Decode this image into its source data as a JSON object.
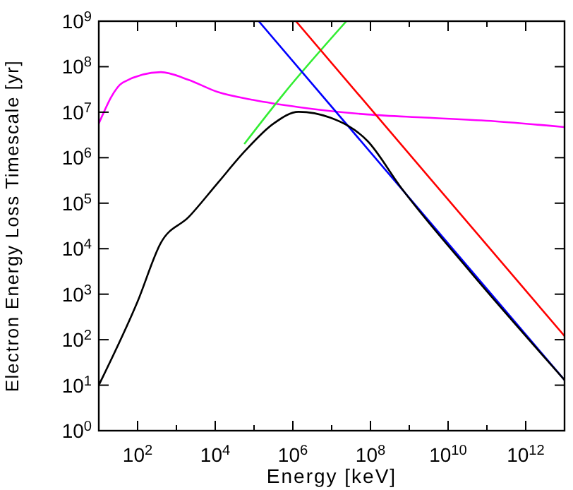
{
  "chart_data": {
    "type": "line",
    "xlabel": "Energy [keV]",
    "ylabel": "Electron Energy Loss Timescale [yr]",
    "log": "xy",
    "grid": false,
    "line_style": "solid",
    "marker": "none",
    "xlim": [
      10,
      10000000000000.0
    ],
    "xticks": [
      {
        "value": 10,
        "label": null
      },
      {
        "value": 100,
        "label": "10$^{2}$"
      },
      {
        "value": 1000,
        "label": null
      },
      {
        "value": 10000,
        "label": "10$^{4}$"
      },
      {
        "value": 100000,
        "label": null
      },
      {
        "value": 1000000,
        "label": "10$^{6}$"
      },
      {
        "value": 10000000,
        "label": null
      },
      {
        "value": 100000000,
        "label": "10$^{8}$"
      },
      {
        "value": 1000000000,
        "label": null
      },
      {
        "value": 10000000000,
        "label": "10$^{10}$"
      },
      {
        "value": 100000000000,
        "label": null
      },
      {
        "value": 1000000000000,
        "label": "10$^{12}$"
      }
    ],
    "ylim": [
      1,
      1000000000.0
    ],
    "yticks": [
      {
        "value": 1,
        "label": "10$^{0}$"
      },
      {
        "value": 10,
        "label": "10$^{1}$"
      },
      {
        "value": 100,
        "label": "10$^{2}$"
      },
      {
        "value": 1000,
        "label": "10$^{3}$"
      },
      {
        "value": 10000,
        "label": "10$^{4}$"
      },
      {
        "value": 100000,
        "label": "10$^{5}$"
      },
      {
        "value": 1000000,
        "label": "10$^{6}$"
      },
      {
        "value": 10000000,
        "label": "10$^{7}$"
      },
      {
        "value": 100000000,
        "label": "10$^{8}$"
      },
      {
        "value": 1000000000,
        "label": "10$^{9}$"
      }
    ],
    "series": [
      {
        "color": "#ff00ff",
        "x": [
          10,
          41.7,
          398,
          2089,
          11220,
          95500,
          1410000,
          85000000,
          2500000000,
          160000000000,
          10000000000000
        ],
        "values": [
          5600000,
          45000000,
          76000000,
          51000000,
          28000000,
          18600000,
          12900000,
          8900000,
          7600000,
          6300000,
          4700000
        ]
      },
      {
        "color": "#33ee33",
        "x": [
          56000,
          562000,
          24000000
        ],
        "values": [
          2000000,
          24500000,
          1000000000
        ]
      },
      {
        "color": "#ff0000",
        "x": [
          1200000,
          10000000000000
        ],
        "values": [
          1000000000,
          120
        ]
      },
      {
        "color": "#0000ff",
        "x": [
          132000,
          10000000000000
        ],
        "values": [
          1000000000,
          13
        ]
      },
      {
        "color": "#000000",
        "x": [
          10,
          100,
          398,
          2089,
          11220,
          58880,
          316200,
          1410000,
          9100000,
          85000000,
          590000000,
          40000000000,
          10000000000000
        ],
        "values": [
          10,
          692,
          13490,
          50000,
          269000,
          1410000,
          5600000,
          10200000,
          7600000,
          2300000,
          230000,
          2900,
          13
        ]
      }
    ]
  }
}
